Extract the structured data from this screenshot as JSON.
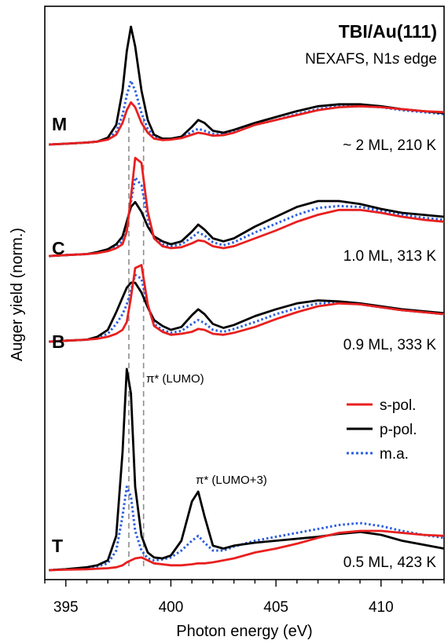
{
  "chart_data": {
    "type": "line",
    "title": "TBI/Au(111)",
    "subtitle": "NEXAFS, N1s edge",
    "subtitle_parts": {
      "before": "NEXAFS, N1",
      "italic": "s",
      "after": " edge"
    },
    "xlabel": "Photon energy (eV)",
    "ylabel": "Auger yield (norm.)",
    "xlim": [
      394,
      413
    ],
    "xticks": [
      395,
      400,
      405,
      410
    ],
    "grid": false,
    "legend_position": "right",
    "legend": [
      {
        "label": "s-pol.",
        "color": "#e8201f",
        "style": "solid"
      },
      {
        "label": "p-pol.",
        "color": "#000000",
        "style": "solid"
      },
      {
        "label": "m.a.",
        "color": "#2b5fde",
        "style": "dotted"
      }
    ],
    "reference_lines": [
      398.0,
      398.7
    ],
    "annotations": [
      {
        "text": "π* (LUMO)",
        "x": 398.7
      },
      {
        "text": "π* (LUMO+3)",
        "x": 401.3
      }
    ],
    "x": [
      394.2,
      395,
      396,
      396.5,
      397,
      397.4,
      397.7,
      397.9,
      398.1,
      398.3,
      398.6,
      398.9,
      399.2,
      399.6,
      400,
      400.5,
      401,
      401.3,
      401.6,
      402,
      402.5,
      403,
      404,
      405,
      406,
      407,
      408,
      409,
      410,
      411,
      412,
      413
    ],
    "panels": [
      {
        "letter": "M",
        "condition": "~ 2 ML, 210 K",
        "series": [
          {
            "name": "s-pol.",
            "values": [
              0,
              0.008,
              0.02,
              0.03,
              0.05,
              0.1,
              0.22,
              0.35,
              0.43,
              0.38,
              0.22,
              0.12,
              0.06,
              0.045,
              0.05,
              0.065,
              0.1,
              0.12,
              0.11,
              0.09,
              0.095,
              0.12,
              0.2,
              0.25,
              0.3,
              0.35,
              0.38,
              0.39,
              0.38,
              0.36,
              0.34,
              0.33
            ]
          },
          {
            "name": "p-pol.",
            "values": [
              0,
              0.008,
              0.02,
              0.03,
              0.07,
              0.2,
              0.55,
              0.95,
              1.2,
              1.0,
              0.55,
              0.25,
              0.1,
              0.06,
              0.06,
              0.08,
              0.18,
              0.25,
              0.22,
              0.14,
              0.12,
              0.15,
              0.22,
              0.28,
              0.34,
              0.39,
              0.41,
              0.41,
              0.39,
              0.36,
              0.34,
              0.32
            ]
          },
          {
            "name": "m.a.",
            "values": [
              0,
              0.008,
              0.02,
              0.03,
              0.06,
              0.13,
              0.3,
              0.5,
              0.65,
              0.55,
              0.32,
              0.16,
              0.08,
              0.05,
              0.055,
              0.07,
              0.13,
              0.16,
              0.14,
              0.11,
              0.1,
              0.13,
              0.2,
              0.25,
              0.31,
              0.36,
              0.39,
              0.39,
              0.38,
              0.35,
              0.33,
              0.31
            ]
          }
        ]
      },
      {
        "letter": "C",
        "condition": "1.0 ML, 313 K",
        "series": [
          {
            "name": "s-pol.",
            "values": [
              0,
              0.01,
              0.02,
              0.03,
              0.05,
              0.08,
              0.12,
              0.25,
              0.6,
              1.0,
              0.95,
              0.45,
              0.18,
              0.1,
              0.08,
              0.09,
              0.13,
              0.16,
              0.15,
              0.1,
              0.08,
              0.1,
              0.18,
              0.26,
              0.35,
              0.42,
              0.47,
              0.47,
              0.44,
              0.4,
              0.37,
              0.35
            ]
          },
          {
            "name": "p-pol.",
            "values": [
              0,
              0.01,
              0.02,
              0.04,
              0.07,
              0.12,
              0.2,
              0.35,
              0.5,
              0.55,
              0.45,
              0.3,
              0.2,
              0.15,
              0.12,
              0.15,
              0.25,
              0.32,
              0.27,
              0.18,
              0.15,
              0.18,
              0.3,
              0.4,
              0.5,
              0.56,
              0.56,
              0.53,
              0.48,
              0.44,
              0.42,
              0.4
            ]
          },
          {
            "name": "m.a.",
            "values": [
              0,
              0.01,
              0.02,
              0.035,
              0.06,
              0.1,
              0.15,
              0.3,
              0.55,
              0.8,
              0.72,
              0.38,
              0.19,
              0.12,
              0.1,
              0.12,
              0.19,
              0.24,
              0.21,
              0.14,
              0.11,
              0.14,
              0.24,
              0.33,
              0.42,
              0.49,
              0.51,
              0.5,
              0.46,
              0.42,
              0.39,
              0.37
            ]
          }
        ]
      },
      {
        "letter": "B",
        "condition": "0.9 ML, 333 K",
        "series": [
          {
            "name": "s-pol.",
            "values": [
              0,
              0.01,
              0.02,
              0.03,
              0.05,
              0.08,
              0.12,
              0.2,
              0.45,
              0.75,
              0.78,
              0.38,
              0.16,
              0.1,
              0.07,
              0.08,
              0.1,
              0.13,
              0.12,
              0.08,
              0.07,
              0.09,
              0.15,
              0.23,
              0.3,
              0.36,
              0.39,
              0.38,
              0.35,
              0.32,
              0.3,
              0.28
            ]
          },
          {
            "name": "p-pol.",
            "values": [
              0,
              0.01,
              0.02,
              0.05,
              0.12,
              0.3,
              0.45,
              0.55,
              0.6,
              0.6,
              0.5,
              0.35,
              0.22,
              0.16,
              0.12,
              0.15,
              0.27,
              0.33,
              0.28,
              0.18,
              0.14,
              0.17,
              0.26,
              0.33,
              0.39,
              0.42,
              0.41,
              0.39,
              0.36,
              0.33,
              0.31,
              0.29
            ]
          },
          {
            "name": "m.a.",
            "values": [
              0,
              0.01,
              0.02,
              0.04,
              0.08,
              0.18,
              0.28,
              0.38,
              0.52,
              0.68,
              0.64,
              0.36,
              0.18,
              0.12,
              0.09,
              0.11,
              0.18,
              0.22,
              0.19,
              0.12,
              0.1,
              0.13,
              0.2,
              0.28,
              0.34,
              0.39,
              0.4,
              0.38,
              0.35,
              0.32,
              0.3,
              0.28
            ]
          }
        ]
      },
      {
        "letter": "T",
        "condition": "0.5 ML, 423 K",
        "series": [
          {
            "name": "s-pol.",
            "values": [
              0,
              0.005,
              0.01,
              0.015,
              0.02,
              0.03,
              0.05,
              0.08,
              0.1,
              0.12,
              0.13,
              0.1,
              0.07,
              0.06,
              0.05,
              0.05,
              0.06,
              0.07,
              0.07,
              0.08,
              0.1,
              0.12,
              0.18,
              0.22,
              0.27,
              0.33,
              0.38,
              0.4,
              0.4,
              0.38,
              0.36,
              0.35
            ]
          },
          {
            "name": "p-pol.",
            "values": [
              0,
              0.01,
              0.03,
              0.05,
              0.1,
              0.35,
              1.2,
              2.05,
              1.8,
              0.85,
              0.35,
              0.18,
              0.13,
              0.12,
              0.15,
              0.3,
              0.7,
              0.8,
              0.55,
              0.25,
              0.22,
              0.25,
              0.28,
              0.3,
              0.32,
              0.34,
              0.37,
              0.39,
              0.36,
              0.3,
              0.26,
              0.22
            ]
          },
          {
            "name": "m.a.",
            "values": [
              0,
              0.01,
              0.02,
              0.04,
              0.07,
              0.2,
              0.55,
              0.85,
              0.75,
              0.4,
              0.2,
              0.12,
              0.1,
              0.11,
              0.13,
              0.2,
              0.3,
              0.35,
              0.28,
              0.2,
              0.2,
              0.24,
              0.3,
              0.34,
              0.38,
              0.42,
              0.46,
              0.48,
              0.45,
              0.4,
              0.36,
              0.33
            ]
          }
        ]
      }
    ]
  }
}
